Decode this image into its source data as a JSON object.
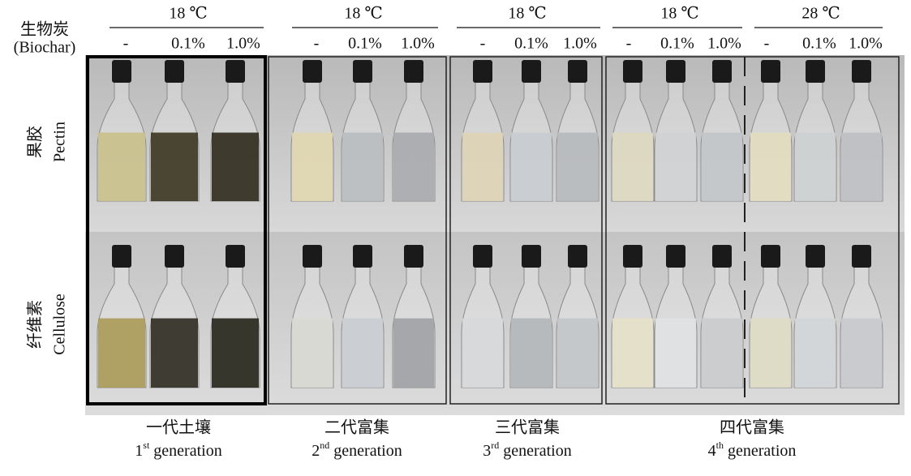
{
  "header": {
    "row_label_zh": "生物炭",
    "row_label_en": "(Biochar)",
    "groups": [
      {
        "temperature": "18 ℃",
        "levels": [
          "-",
          "0.1%",
          "1.0%"
        ]
      },
      {
        "temperature": "18 ℃",
        "levels": [
          "-",
          "0.1%",
          "1.0%"
        ]
      },
      {
        "temperature": "18 ℃",
        "levels": [
          "-",
          "0.1%",
          "1.0%"
        ]
      },
      {
        "temperature": "18 ℃",
        "levels": [
          "-",
          "0.1%",
          "1.0%"
        ]
      },
      {
        "temperature": "28 ℃",
        "levels": [
          "-",
          "0.1%",
          "1.0%"
        ]
      }
    ]
  },
  "rows": [
    {
      "zh": "果胶",
      "en": "Pectin"
    },
    {
      "zh": "纤维素",
      "en": "Cellulose"
    }
  ],
  "generations": [
    {
      "zh": "一代土壤",
      "ordinal": "1",
      "suffix": "st",
      "en": "generation"
    },
    {
      "zh": "二代富集",
      "ordinal": "2",
      "suffix": "nd",
      "en": "generation"
    },
    {
      "zh": "三代富集",
      "ordinal": "3",
      "suffix": "rd",
      "en": "generation"
    },
    {
      "zh": "四代富集",
      "ordinal": "4",
      "suffix": "th",
      "en": "generation"
    }
  ]
}
